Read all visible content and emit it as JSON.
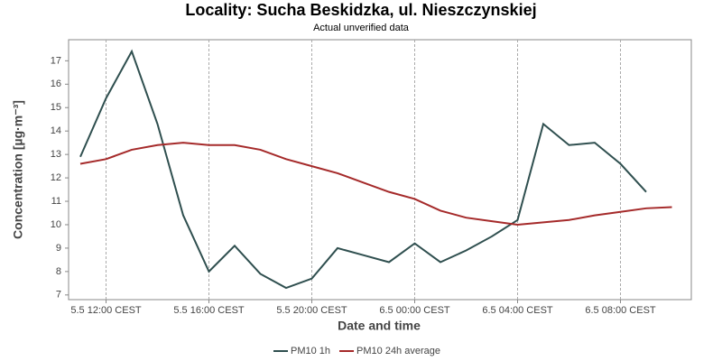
{
  "chart_data": {
    "type": "line",
    "title": "Locality: Sucha Beskidzka, ul. Nieszczynskiej",
    "subtitle": "Actual unverified data",
    "x_label": "Date and time",
    "y_label": "Concentration [µg·m⁻³]",
    "categories": [
      null,
      "5.5 12:00 CEST",
      null,
      null,
      null,
      "5.5 16:00 CEST",
      null,
      null,
      null,
      "5.5 20:00 CEST",
      null,
      null,
      null,
      "6.5 00:00 CEST",
      null,
      null,
      null,
      "6.5 04:00 CEST",
      null,
      null,
      null,
      "6.5 08:00 CEST",
      null,
      null
    ],
    "series": [
      {
        "name": "PM10 1h",
        "color": "#2f4f4f",
        "values": [
          12.9,
          15.4,
          17.4,
          14.3,
          10.4,
          8.0,
          9.1,
          7.9,
          7.3,
          7.7,
          9.0,
          8.7,
          8.4,
          9.2,
          8.4,
          8.9,
          9.5,
          10.2,
          14.3,
          13.4,
          13.5,
          12.6,
          11.4,
          null
        ]
      },
      {
        "name": "PM10 24h average",
        "color": "#a52a2a",
        "values": [
          12.6,
          12.8,
          13.2,
          13.4,
          13.5,
          13.4,
          13.4,
          13.2,
          12.8,
          12.5,
          12.2,
          11.8,
          11.4,
          11.1,
          10.6,
          10.3,
          10.15,
          10.0,
          10.1,
          10.2,
          10.4,
          10.55,
          10.7,
          10.75
        ]
      }
    ],
    "ylim": [
      6.8,
      17.9
    ],
    "yticks": [
      7,
      8,
      9,
      10,
      11,
      12,
      13,
      14,
      15,
      16,
      17
    ],
    "grid": true,
    "legend": "bottom"
  }
}
